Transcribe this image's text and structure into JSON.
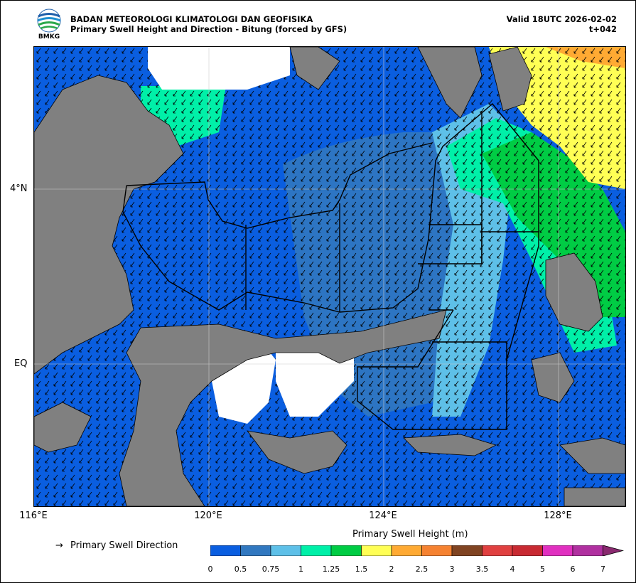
{
  "header": {
    "agency": "BADAN METEOROLOGI KLIMATOLOGI DAN GEOFISIKA",
    "subtitle": "Primary Swell Height and Direction - Bitung (forced by GFS)",
    "valid": "Valid 18UTC 2026-02-02",
    "lead": "t+042",
    "logo_text": "BMKG"
  },
  "map": {
    "y_labels": [
      "4°N",
      "EQ"
    ],
    "x_labels": [
      "116°E",
      "120°E",
      "124°E",
      "128°E"
    ],
    "land_color": "#808080",
    "grid": true
  },
  "legend": {
    "arrow_symbol": "→",
    "direction_label": "Primary Swell Direction"
  },
  "colorbar": {
    "title": "Primary Swell Height (m)",
    "ticks": [
      "0",
      "0.5",
      "0.75",
      "1",
      "1.25",
      "1.5",
      "2",
      "2.5",
      "3",
      "3.5",
      "4",
      "5",
      "6",
      "7"
    ],
    "colors": [
      "#0a5ee0",
      "#3178c0",
      "#5ec0e8",
      "#00f0a8",
      "#00cc44",
      "#ffff55",
      "#ffaa33",
      "#f58231",
      "#804422",
      "#e04040",
      "#c82a32",
      "#e030c0",
      "#b030a0"
    ],
    "extend_color": "#8a2a70"
  }
}
